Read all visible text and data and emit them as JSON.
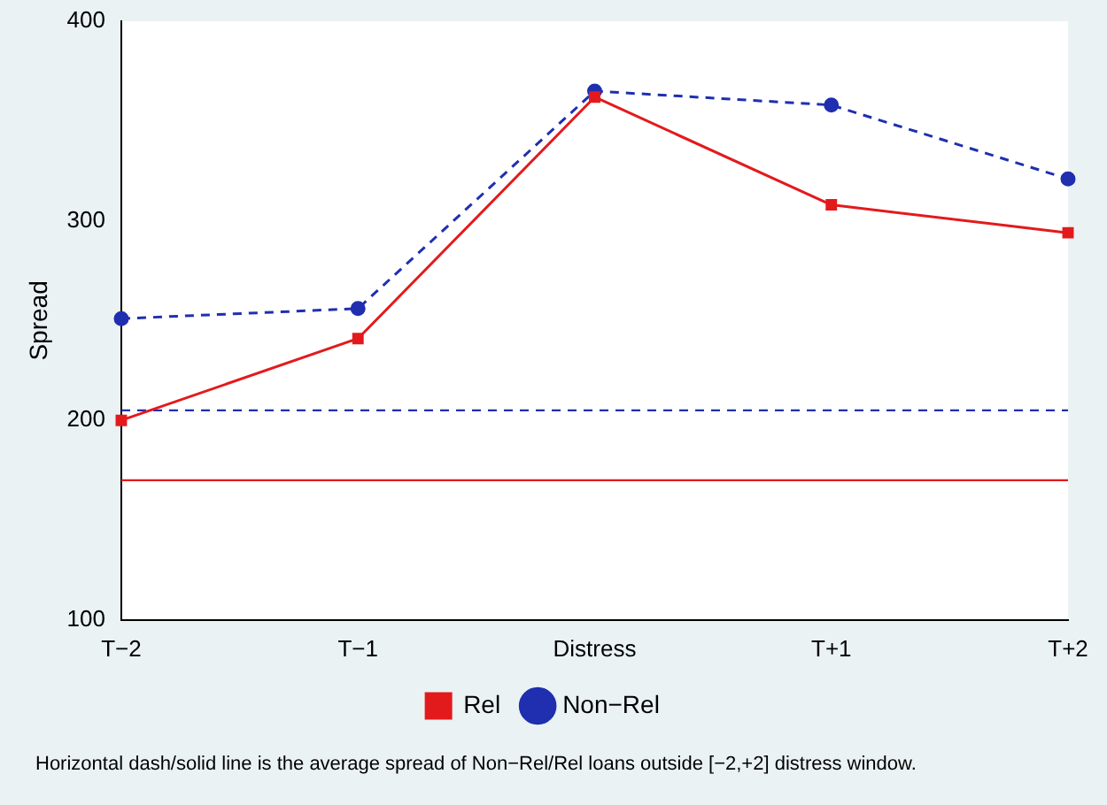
{
  "chart_data": {
    "type": "line",
    "ylabel": "Spread",
    "categories": [
      "T−2",
      "T−1",
      "Distress",
      "T+1",
      "T+2"
    ],
    "series": [
      {
        "name": "Non−Rel",
        "color": "#1f2fb0",
        "values": [
          251,
          256,
          365,
          358,
          321
        ],
        "marker": "circle",
        "line_style": "dashed"
      },
      {
        "name": "Rel",
        "color": "#e31a1c",
        "values": [
          200,
          241,
          362,
          308,
          294
        ],
        "marker": "square",
        "line_style": "solid"
      }
    ],
    "ylim": [
      100,
      400
    ],
    "yticks": [
      100,
      200,
      300,
      400
    ],
    "grid": false,
    "legend": "bottom",
    "ref_lines": [
      {
        "axis": "y",
        "value": 205,
        "color": "#1f2fb0",
        "line_style": "dashed"
      },
      {
        "axis": "y",
        "value": 170,
        "color": "#e31a1c",
        "line_style": "solid"
      }
    ],
    "annotations": [
      "Horizontal dash/solid line is the average spread of Non−Rel/Rel loans outside [−2,+2] distress window."
    ]
  }
}
